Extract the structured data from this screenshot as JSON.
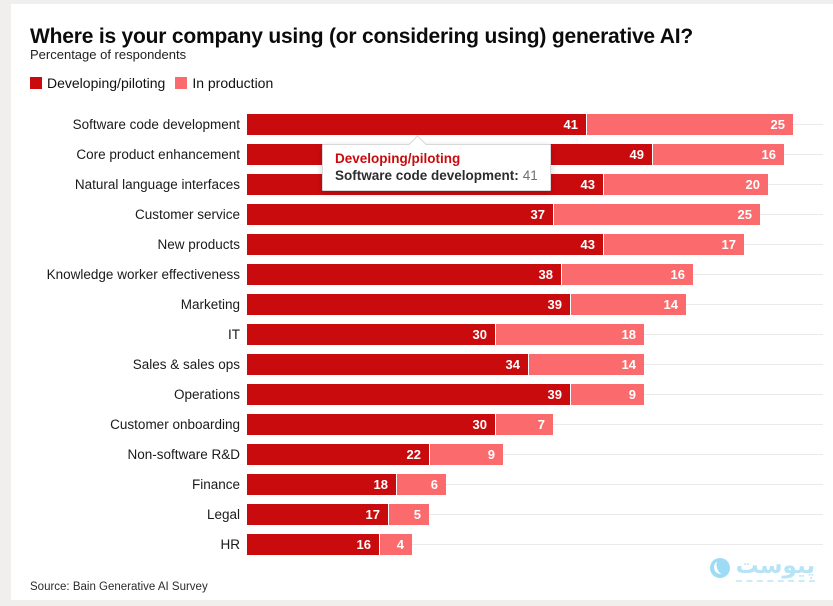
{
  "header": {
    "title": "Where is your company using (or considering using) generative AI?",
    "subtitle": "Percentage of respondents"
  },
  "legend": [
    {
      "label": "Developing/piloting",
      "color": "#ca0b0e"
    },
    {
      "label": "In production",
      "color": "#fb6a6c"
    }
  ],
  "chart_data": {
    "type": "bar",
    "orientation": "horizontal",
    "stacked": true,
    "title": "Where is your company using (or considering using) generative AI?",
    "subtitle": "Percentage of respondents",
    "unit": "percent of respondents",
    "xlim": [
      0,
      66
    ],
    "grid": "faint horizontal baseline per row",
    "value_labels": "white bold, inside right end of each segment",
    "legend_position": "top-left",
    "categories": [
      "Software code development",
      "Core product enhancement",
      "Natural language interfaces",
      "Customer service",
      "New products",
      "Knowledge worker effectiveness",
      "Marketing",
      "IT",
      "Sales & sales ops",
      "Operations",
      "Customer onboarding",
      "Non-software R&D",
      "Finance",
      "Legal",
      "HR"
    ],
    "series": [
      {
        "name": "Developing/piloting",
        "color": "#ca0b0e",
        "values": [
          41,
          49,
          43,
          37,
          43,
          38,
          39,
          30,
          34,
          39,
          30,
          22,
          18,
          17,
          16
        ]
      },
      {
        "name": "In production",
        "color": "#fb6a6c",
        "values": [
          25,
          16,
          20,
          25,
          17,
          16,
          14,
          18,
          14,
          9,
          7,
          9,
          6,
          5,
          4
        ]
      }
    ]
  },
  "tooltip": {
    "series": "Developing/piloting",
    "series_color": "#ca0b0e",
    "category_label": "Software code development:",
    "value": "41"
  },
  "footer": {
    "source": "Source: Bain Generative AI Survey",
    "watermark": "پیوست"
  }
}
